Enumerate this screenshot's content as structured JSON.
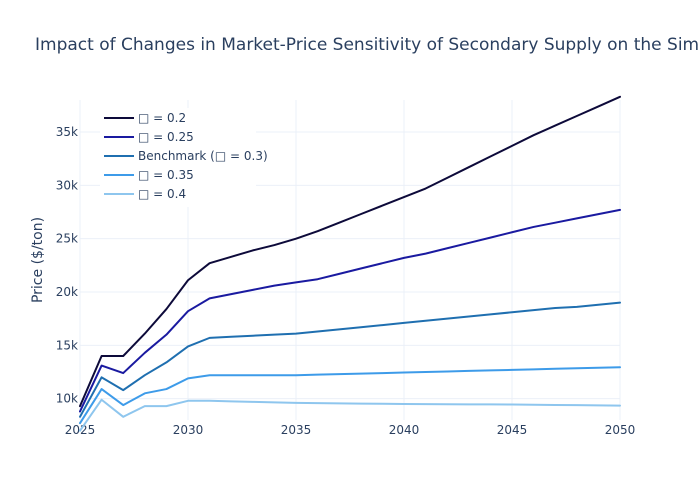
{
  "chart_data": {
    "type": "line",
    "title": "Impact of Changes in Market-Price Sensitivity of Secondary Supply on the Simulated",
    "xlabel": "",
    "ylabel": "Price ($/ton)",
    "xlim": [
      2025,
      2050
    ],
    "ylim": [
      8000,
      38000
    ],
    "x_ticks": [
      2025,
      2030,
      2035,
      2040,
      2045,
      2050
    ],
    "y_ticks": [
      10000,
      15000,
      20000,
      25000,
      30000,
      35000
    ],
    "y_tick_labels": [
      "10k",
      "15k",
      "20k",
      "25k",
      "30k",
      "35k"
    ],
    "grid": true,
    "legend_position": "top-left",
    "x": [
      2025,
      2026,
      2027,
      2028,
      2029,
      2030,
      2031,
      2032,
      2033,
      2034,
      2035,
      2036,
      2037,
      2038,
      2039,
      2040,
      2041,
      2042,
      2043,
      2044,
      2045,
      2046,
      2047,
      2048,
      2049,
      2050
    ],
    "series": [
      {
        "name": "□ = 0.2",
        "color": "#0d0a3a",
        "values": [
          9300,
          14000,
          14000,
          16100,
          18400,
          21100,
          22700,
          23300,
          23900,
          24400,
          25000,
          25700,
          26500,
          27300,
          28100,
          28900,
          29700,
          30700,
          31700,
          32700,
          33700,
          34700,
          35600,
          36500,
          37400,
          38300
        ]
      },
      {
        "name": "□ = 0.25",
        "color": "#1a1aa0",
        "values": [
          8800,
          13100,
          12400,
          14300,
          16000,
          18200,
          19400,
          19800,
          20200,
          20600,
          20900,
          21200,
          21700,
          22200,
          22700,
          23200,
          23600,
          24100,
          24600,
          25100,
          25600,
          26100,
          26500,
          26900,
          27300,
          27700
        ]
      },
      {
        "name": "Benchmark (□ = 0.3)",
        "color": "#1f6fb0",
        "values": [
          8300,
          12000,
          10800,
          12200,
          13400,
          14900,
          15700,
          15800,
          15900,
          16000,
          16100,
          16300,
          16500,
          16700,
          16900,
          17100,
          17300,
          17500,
          17700,
          17900,
          18100,
          18300,
          18500,
          18600,
          18800,
          19000
        ]
      },
      {
        "name": "□ = 0.35",
        "color": "#3d9be9",
        "values": [
          7700,
          10900,
          9400,
          10500,
          10900,
          11900,
          12200,
          12200,
          12200,
          12200,
          12200,
          12250,
          12300,
          12350,
          12400,
          12450,
          12500,
          12550,
          12600,
          12650,
          12700,
          12750,
          12800,
          12850,
          12900,
          12950
        ]
      },
      {
        "name": "□ = 0.4",
        "color": "#8ec6ee",
        "values": [
          7000,
          9900,
          8300,
          9300,
          9300,
          9800,
          9800,
          9750,
          9700,
          9650,
          9600,
          9580,
          9560,
          9540,
          9520,
          9500,
          9490,
          9480,
          9470,
          9460,
          9450,
          9430,
          9410,
          9390,
          9370,
          9350
        ]
      }
    ]
  }
}
